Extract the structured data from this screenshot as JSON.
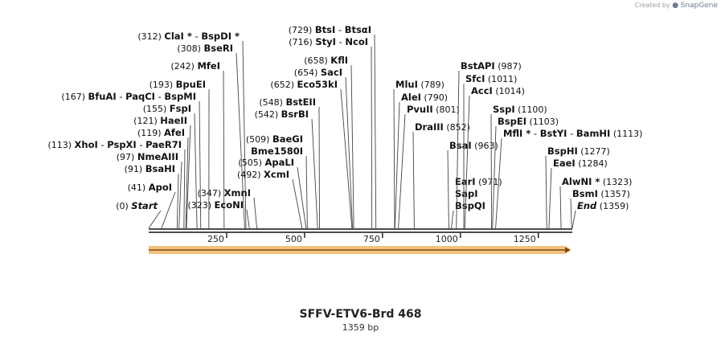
{
  "header": {
    "created_by": "Created by",
    "brand": "SnapGene"
  },
  "plasmid": {
    "name": "SFFV-ETV6-Brd 468",
    "length_label": "1359 bp"
  },
  "map": {
    "total_bp": 1359,
    "ticks": [
      {
        "bp": 250,
        "label": "250"
      },
      {
        "bp": 500,
        "label": "500"
      },
      {
        "bp": 750,
        "label": "750"
      },
      {
        "bp": 1000,
        "label": "1000"
      },
      {
        "bp": 1250,
        "label": "1250"
      }
    ],
    "feature": {
      "name": "orange-feature-arrow",
      "start": 0,
      "end": 1359,
      "direction": "forward",
      "color": "#f3c27f",
      "edge_color": "#7a4a12"
    }
  },
  "sites": [
    {
      "pos": "(0)",
      "bp": 0,
      "names": [
        "Start"
      ],
      "italic": true
    },
    {
      "pos": "(41)",
      "bp": 41,
      "names": [
        "ApoI"
      ]
    },
    {
      "pos": "(91)",
      "bp": 91,
      "names": [
        "BsaHI"
      ]
    },
    {
      "pos": "(97)",
      "bp": 97,
      "names": [
        "NmeAIII"
      ]
    },
    {
      "pos": "(113)",
      "bp": 113,
      "names": [
        "XhoI",
        "PspXI",
        "PaeR7I"
      ]
    },
    {
      "pos": "(119)",
      "bp": 119,
      "names": [
        "AfeI"
      ]
    },
    {
      "pos": "(121)",
      "bp": 121,
      "names": [
        "HaeII"
      ]
    },
    {
      "pos": "(155)",
      "bp": 155,
      "names": [
        "FspI"
      ]
    },
    {
      "pos": "(167)",
      "bp": 167,
      "names": [
        "BfuAI",
        "PaqCI",
        "BspMI"
      ]
    },
    {
      "pos": "(193)",
      "bp": 193,
      "names": [
        "BpuEI"
      ]
    },
    {
      "pos": "(242)",
      "bp": 242,
      "names": [
        "MfeI"
      ]
    },
    {
      "pos": "(308)",
      "bp": 308,
      "names": [
        "BseRI"
      ]
    },
    {
      "pos": "(312)",
      "bp": 312,
      "names": [
        "ClaI *",
        "BspDI *"
      ]
    },
    {
      "pos": "(323)",
      "bp": 323,
      "names": [
        "EcoNI"
      ]
    },
    {
      "pos": "(347)",
      "bp": 347,
      "names": [
        "XmnI"
      ]
    },
    {
      "pos": "(492)",
      "bp": 492,
      "names": [
        "XcmI"
      ]
    },
    {
      "pos": "(505)",
      "bp": 505,
      "names": [
        "ApaLI"
      ]
    },
    {
      "pos": "(509)",
      "bp": 509,
      "names": [
        "BaeGI",
        "Bme1580I"
      ]
    },
    {
      "pos": "(542)",
      "bp": 542,
      "names": [
        "BsrBI"
      ]
    },
    {
      "pos": "(548)",
      "bp": 548,
      "names": [
        "BstEII"
      ]
    },
    {
      "pos": "(652)",
      "bp": 652,
      "names": [
        "Eco53kI"
      ]
    },
    {
      "pos": "(654)",
      "bp": 654,
      "names": [
        "SacI"
      ]
    },
    {
      "pos": "(658)",
      "bp": 658,
      "names": [
        "KflI"
      ]
    },
    {
      "pos": "(716)",
      "bp": 716,
      "names": [
        "StyI",
        "NcoI"
      ]
    },
    {
      "pos": "(729)",
      "bp": 729,
      "names": [
        "BtsI",
        "BtsαI"
      ]
    },
    {
      "pos": "(789)",
      "bp": 789,
      "names": [
        "MluI"
      ]
    },
    {
      "pos": "(790)",
      "bp": 790,
      "names": [
        "AleI"
      ]
    },
    {
      "pos": "(801)",
      "bp": 801,
      "names": [
        "PvuII"
      ]
    },
    {
      "pos": "(852)",
      "bp": 852,
      "names": [
        "DraIII"
      ]
    },
    {
      "pos": "(963)",
      "bp": 963,
      "names": [
        "BsaI"
      ]
    },
    {
      "pos": "(971)",
      "bp": 971,
      "names": [
        "EarI",
        "SapI",
        "BspQI"
      ]
    },
    {
      "pos": "(987)",
      "bp": 987,
      "names": [
        "BstAPI"
      ]
    },
    {
      "pos": "(1011)",
      "bp": 1011,
      "names": [
        "SfcI"
      ]
    },
    {
      "pos": "(1014)",
      "bp": 1014,
      "names": [
        "AccI"
      ]
    },
    {
      "pos": "(1100)",
      "bp": 1100,
      "names": [
        "SspI"
      ]
    },
    {
      "pos": "(1103)",
      "bp": 1103,
      "names": [
        "BspEI"
      ]
    },
    {
      "pos": "(1113)",
      "bp": 1113,
      "names": [
        "MflI *",
        "BstYI",
        "BamHI"
      ]
    },
    {
      "pos": "(1277)",
      "bp": 1277,
      "names": [
        "BspHI"
      ]
    },
    {
      "pos": "(1284)",
      "bp": 1284,
      "names": [
        "EaeI"
      ]
    },
    {
      "pos": "(1323)",
      "bp": 1323,
      "names": [
        "AlwNI *"
      ]
    },
    {
      "pos": "(1357)",
      "bp": 1357,
      "names": [
        "BsmI"
      ]
    },
    {
      "pos": "(1359)",
      "bp": 1359,
      "names": [
        "End"
      ],
      "italic": true
    }
  ]
}
